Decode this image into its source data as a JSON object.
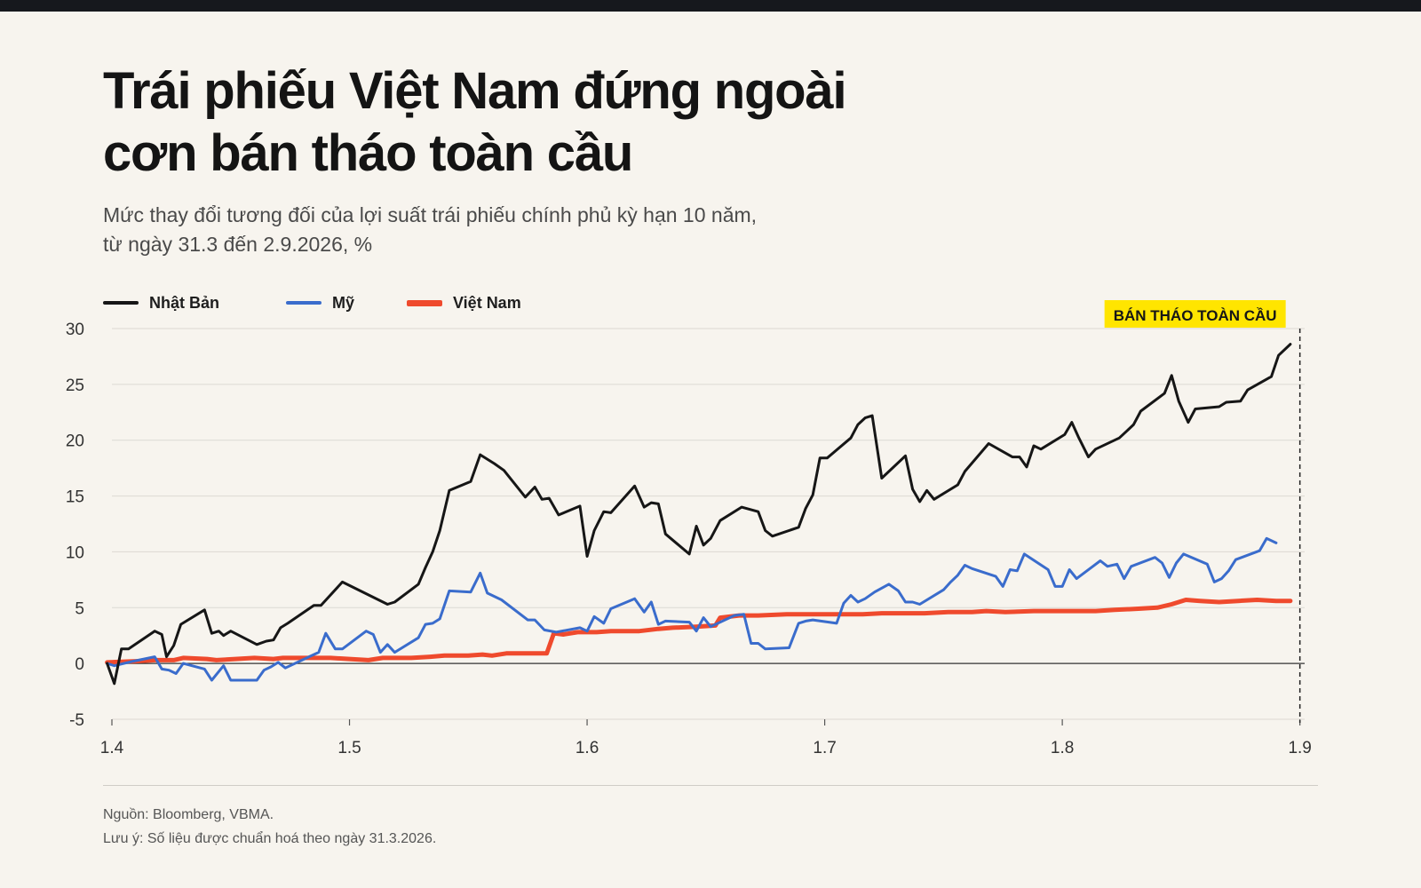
{
  "title_lines": [
    "Trái phiếu Việt Nam đứng ngoài",
    "cơn bán tháo toàn cầu"
  ],
  "subtitle_lines": [
    "Mức thay đổi tương đối của lợi suất trái phiếu chính phủ kỳ hạn 10 năm,",
    "từ ngày 31.3 đến 2.9.2026, %"
  ],
  "footer": {
    "source": "Nguồn: Bloomberg, VBMA.",
    "note": "Lưu ý: Số liệu được chuẩn hoá theo ngày 31.3.2026."
  },
  "chart_data": {
    "type": "line",
    "title": "Trái phiếu Việt Nam đứng ngoài cơn bán tháo toàn cầu",
    "subtitle": "Mức thay đổi tương đối của lợi suất trái phiếu chính phủ kỳ hạn 10 năm, từ ngày 31.3 đến 2.9.2026, %",
    "xlabel": "",
    "ylabel": "",
    "xlim": [
      1.4,
      1.902
    ],
    "ylim": [
      -5,
      30
    ],
    "x_ticks": [
      {
        "value": 1.4,
        "label": "1.4"
      },
      {
        "value": 1.5,
        "label": "1.5"
      },
      {
        "value": 1.6,
        "label": "1.6"
      },
      {
        "value": 1.7,
        "label": "1.7"
      },
      {
        "value": 1.8,
        "label": "1.8"
      },
      {
        "value": 1.9,
        "label": "1.9"
      }
    ],
    "y_ticks": [
      -5,
      0,
      5,
      10,
      15,
      20,
      25,
      30
    ],
    "grid": true,
    "zero_line": true,
    "legend_position": "top-left",
    "annotation": {
      "label": "BÁN THÁO TOÀN CẦU",
      "x": 1.9,
      "color": "#ffe500"
    },
    "series": [
      {
        "name": "Nhật Bản",
        "color": "#161616",
        "points": [
          [
            1.398,
            0
          ],
          [
            1.401,
            -1.8
          ],
          [
            1.404,
            1.3
          ],
          [
            1.407,
            1.3
          ],
          [
            1.418,
            2.9
          ],
          [
            1.421,
            2.6
          ],
          [
            1.423,
            0.6
          ],
          [
            1.426,
            1.6
          ],
          [
            1.429,
            3.5
          ],
          [
            1.439,
            4.8
          ],
          [
            1.442,
            2.7
          ],
          [
            1.445,
            2.9
          ],
          [
            1.447,
            2.5
          ],
          [
            1.45,
            2.9
          ],
          [
            1.461,
            1.7
          ],
          [
            1.465,
            2.0
          ],
          [
            1.468,
            2.1
          ],
          [
            1.471,
            3.2
          ],
          [
            1.474,
            3.6
          ],
          [
            1.485,
            5.2
          ],
          [
            1.488,
            5.2
          ],
          [
            1.497,
            7.3
          ],
          [
            1.516,
            5.3
          ],
          [
            1.519,
            5.5
          ],
          [
            1.529,
            7.1
          ],
          [
            1.532,
            8.6
          ],
          [
            1.535,
            10.0
          ],
          [
            1.538,
            11.9
          ],
          [
            1.542,
            15.5
          ],
          [
            1.551,
            16.3
          ],
          [
            1.555,
            18.7
          ],
          [
            1.561,
            17.9
          ],
          [
            1.565,
            17.3
          ],
          [
            1.574,
            14.9
          ],
          [
            1.578,
            15.8
          ],
          [
            1.581,
            14.7
          ],
          [
            1.584,
            14.8
          ],
          [
            1.588,
            13.3
          ],
          [
            1.597,
            14.1
          ],
          [
            1.6,
            9.6
          ],
          [
            1.603,
            11.9
          ],
          [
            1.607,
            13.6
          ],
          [
            1.61,
            13.5
          ],
          [
            1.62,
            15.9
          ],
          [
            1.624,
            14.0
          ],
          [
            1.627,
            14.4
          ],
          [
            1.63,
            14.3
          ],
          [
            1.633,
            11.6
          ],
          [
            1.643,
            9.8
          ],
          [
            1.646,
            12.3
          ],
          [
            1.649,
            10.6
          ],
          [
            1.652,
            11.2
          ],
          [
            1.656,
            12.8
          ],
          [
            1.665,
            14.0
          ],
          [
            1.672,
            13.6
          ],
          [
            1.675,
            11.9
          ],
          [
            1.678,
            11.4
          ],
          [
            1.689,
            12.2
          ],
          [
            1.692,
            13.9
          ],
          [
            1.695,
            15.1
          ],
          [
            1.698,
            18.4
          ],
          [
            1.701,
            18.4
          ],
          [
            1.711,
            20.2
          ],
          [
            1.714,
            21.4
          ],
          [
            1.717,
            22.0
          ],
          [
            1.72,
            22.2
          ],
          [
            1.724,
            16.6
          ],
          [
            1.734,
            18.6
          ],
          [
            1.737,
            15.6
          ],
          [
            1.74,
            14.5
          ],
          [
            1.743,
            15.5
          ],
          [
            1.746,
            14.7
          ],
          [
            1.756,
            16.0
          ],
          [
            1.759,
            17.2
          ],
          [
            1.769,
            19.7
          ],
          [
            1.779,
            18.5
          ],
          [
            1.782,
            18.5
          ],
          [
            1.785,
            17.6
          ],
          [
            1.788,
            19.5
          ],
          [
            1.791,
            19.2
          ],
          [
            1.801,
            20.5
          ],
          [
            1.804,
            21.6
          ],
          [
            1.807,
            20.2
          ],
          [
            1.811,
            18.5
          ],
          [
            1.814,
            19.2
          ],
          [
            1.824,
            20.2
          ],
          [
            1.827,
            20.8
          ],
          [
            1.83,
            21.4
          ],
          [
            1.833,
            22.6
          ],
          [
            1.843,
            24.2
          ],
          [
            1.846,
            25.8
          ],
          [
            1.849,
            23.5
          ],
          [
            1.853,
            21.6
          ],
          [
            1.856,
            22.8
          ],
          [
            1.866,
            23.0
          ],
          [
            1.869,
            23.4
          ],
          [
            1.875,
            23.5
          ],
          [
            1.878,
            24.5
          ],
          [
            1.888,
            25.7
          ],
          [
            1.891,
            27.6
          ],
          [
            1.896,
            28.6
          ]
        ]
      },
      {
        "name": "Mỹ",
        "color": "#3a6ccc",
        "points": [
          [
            1.398,
            0
          ],
          [
            1.401,
            -0.2
          ],
          [
            1.409,
            0.2
          ],
          [
            1.418,
            0.6
          ],
          [
            1.421,
            -0.5
          ],
          [
            1.424,
            -0.6
          ],
          [
            1.427,
            -0.9
          ],
          [
            1.43,
            0
          ],
          [
            1.439,
            -0.5
          ],
          [
            1.442,
            -1.5
          ],
          [
            1.447,
            -0.2
          ],
          [
            1.45,
            -1.5
          ],
          [
            1.461,
            -1.5
          ],
          [
            1.464,
            -0.6
          ],
          [
            1.467,
            -0.3
          ],
          [
            1.47,
            0.1
          ],
          [
            1.473,
            -0.4
          ],
          [
            1.483,
            0.6
          ],
          [
            1.487,
            1.0
          ],
          [
            1.49,
            2.7
          ],
          [
            1.494,
            1.3
          ],
          [
            1.497,
            1.3
          ],
          [
            1.507,
            2.9
          ],
          [
            1.51,
            2.6
          ],
          [
            1.513,
            1.0
          ],
          [
            1.516,
            1.7
          ],
          [
            1.519,
            1.0
          ],
          [
            1.529,
            2.3
          ],
          [
            1.532,
            3.5
          ],
          [
            1.535,
            3.6
          ],
          [
            1.538,
            4.0
          ],
          [
            1.542,
            6.5
          ],
          [
            1.551,
            6.4
          ],
          [
            1.555,
            8.1
          ],
          [
            1.558,
            6.3
          ],
          [
            1.564,
            5.7
          ],
          [
            1.575,
            3.9
          ],
          [
            1.578,
            3.9
          ],
          [
            1.582,
            3.0
          ],
          [
            1.587,
            2.8
          ],
          [
            1.597,
            3.2
          ],
          [
            1.6,
            2.9
          ],
          [
            1.603,
            4.2
          ],
          [
            1.607,
            3.6
          ],
          [
            1.61,
            4.9
          ],
          [
            1.62,
            5.8
          ],
          [
            1.624,
            4.6
          ],
          [
            1.627,
            5.5
          ],
          [
            1.63,
            3.5
          ],
          [
            1.633,
            3.8
          ],
          [
            1.643,
            3.7
          ],
          [
            1.646,
            2.9
          ],
          [
            1.649,
            4.1
          ],
          [
            1.652,
            3.3
          ],
          [
            1.662,
            4.3
          ],
          [
            1.666,
            4.4
          ],
          [
            1.669,
            1.8
          ],
          [
            1.672,
            1.8
          ],
          [
            1.675,
            1.3
          ],
          [
            1.685,
            1.4
          ],
          [
            1.689,
            3.6
          ],
          [
            1.692,
            3.8
          ],
          [
            1.695,
            3.9
          ],
          [
            1.705,
            3.6
          ],
          [
            1.708,
            5.4
          ],
          [
            1.711,
            6.1
          ],
          [
            1.714,
            5.5
          ],
          [
            1.717,
            5.8
          ],
          [
            1.721,
            6.4
          ],
          [
            1.727,
            7.1
          ],
          [
            1.731,
            6.5
          ],
          [
            1.734,
            5.5
          ],
          [
            1.737,
            5.5
          ],
          [
            1.74,
            5.3
          ],
          [
            1.75,
            6.6
          ],
          [
            1.753,
            7.3
          ],
          [
            1.756,
            7.9
          ],
          [
            1.759,
            8.8
          ],
          [
            1.762,
            8.5
          ],
          [
            1.772,
            7.8
          ],
          [
            1.775,
            6.9
          ],
          [
            1.778,
            8.4
          ],
          [
            1.781,
            8.3
          ],
          [
            1.784,
            9.8
          ],
          [
            1.794,
            8.4
          ],
          [
            1.797,
            6.9
          ],
          [
            1.8,
            6.9
          ],
          [
            1.803,
            8.4
          ],
          [
            1.806,
            7.6
          ],
          [
            1.816,
            9.2
          ],
          [
            1.819,
            8.7
          ],
          [
            1.823,
            8.9
          ],
          [
            1.826,
            7.6
          ],
          [
            1.829,
            8.7
          ],
          [
            1.839,
            9.5
          ],
          [
            1.842,
            9.0
          ],
          [
            1.845,
            7.7
          ],
          [
            1.848,
            9.0
          ],
          [
            1.851,
            9.8
          ],
          [
            1.861,
            8.9
          ],
          [
            1.864,
            7.3
          ],
          [
            1.867,
            7.6
          ],
          [
            1.87,
            8.3
          ],
          [
            1.873,
            9.3
          ],
          [
            1.883,
            10.1
          ],
          [
            1.886,
            11.2
          ],
          [
            1.89,
            10.8
          ]
        ]
      },
      {
        "name": "Việt Nam",
        "color": "#ef4a2d",
        "points": [
          [
            1.398,
            0.1
          ],
          [
            1.41,
            0.2
          ],
          [
            1.418,
            0.3
          ],
          [
            1.426,
            0.3
          ],
          [
            1.43,
            0.5
          ],
          [
            1.44,
            0.4
          ],
          [
            1.444,
            0.3
          ],
          [
            1.452,
            0.4
          ],
          [
            1.46,
            0.5
          ],
          [
            1.468,
            0.4
          ],
          [
            1.472,
            0.5
          ],
          [
            1.484,
            0.5
          ],
          [
            1.492,
            0.5
          ],
          [
            1.5,
            0.4
          ],
          [
            1.508,
            0.3
          ],
          [
            1.514,
            0.5
          ],
          [
            1.526,
            0.5
          ],
          [
            1.534,
            0.6
          ],
          [
            1.54,
            0.7
          ],
          [
            1.55,
            0.7
          ],
          [
            1.556,
            0.8
          ],
          [
            1.56,
            0.7
          ],
          [
            1.566,
            0.9
          ],
          [
            1.574,
            0.9
          ],
          [
            1.58,
            0.9
          ],
          [
            1.583,
            0.9
          ],
          [
            1.586,
            2.7
          ],
          [
            1.59,
            2.6
          ],
          [
            1.596,
            2.8
          ],
          [
            1.604,
            2.8
          ],
          [
            1.61,
            2.9
          ],
          [
            1.622,
            2.9
          ],
          [
            1.63,
            3.1
          ],
          [
            1.636,
            3.2
          ],
          [
            1.646,
            3.3
          ],
          [
            1.654,
            3.4
          ],
          [
            1.656,
            4.1
          ],
          [
            1.664,
            4.3
          ],
          [
            1.672,
            4.3
          ],
          [
            1.684,
            4.4
          ],
          [
            1.692,
            4.4
          ],
          [
            1.7,
            4.4
          ],
          [
            1.712,
            4.4
          ],
          [
            1.716,
            4.4
          ],
          [
            1.724,
            4.5
          ],
          [
            1.734,
            4.5
          ],
          [
            1.742,
            4.5
          ],
          [
            1.752,
            4.6
          ],
          [
            1.762,
            4.6
          ],
          [
            1.768,
            4.7
          ],
          [
            1.776,
            4.6
          ],
          [
            1.788,
            4.7
          ],
          [
            1.796,
            4.7
          ],
          [
            1.806,
            4.7
          ],
          [
            1.814,
            4.7
          ],
          [
            1.822,
            4.8
          ],
          [
            1.832,
            4.9
          ],
          [
            1.84,
            5.0
          ],
          [
            1.846,
            5.3
          ],
          [
            1.852,
            5.7
          ],
          [
            1.858,
            5.6
          ],
          [
            1.866,
            5.5
          ],
          [
            1.874,
            5.6
          ],
          [
            1.882,
            5.7
          ],
          [
            1.89,
            5.6
          ],
          [
            1.896,
            5.6
          ]
        ]
      }
    ]
  }
}
